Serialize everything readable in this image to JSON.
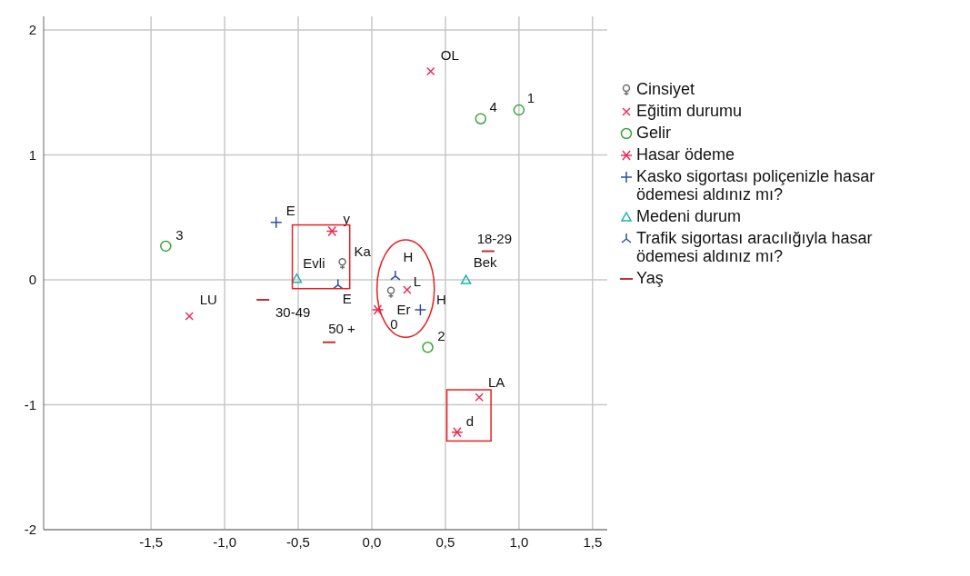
{
  "chart_data": {
    "type": "scatter",
    "xlim": [
      -2.23,
      1.6
    ],
    "ylim": [
      -2,
      2.11
    ],
    "xticks": [
      {
        "value": -1.5,
        "label": "-1,5"
      },
      {
        "value": -1,
        "label": "-1,0"
      },
      {
        "value": -0.5,
        "label": "-0,5"
      },
      {
        "value": 0,
        "label": "0,0"
      },
      {
        "value": 0.5,
        "label": "0,5"
      },
      {
        "value": 1,
        "label": "1,0"
      },
      {
        "value": 1.5,
        "label": "1,5"
      }
    ],
    "yticks": [
      -2,
      -1,
      0,
      1,
      2
    ],
    "grid": true,
    "legend": "right",
    "series": [
      {
        "name": "Cinsiyet",
        "color": "#707070",
        "x": [
          -0.2,
          0.13
        ],
        "values": [
          0.13,
          -0.1
        ]
      },
      {
        "name": "Eğitim durumu",
        "color": "#e8305a",
        "x": [
          0.4,
          0.24,
          -1.24,
          0.73
        ],
        "values": [
          1.67,
          -0.08,
          -0.29,
          -0.94
        ]
      },
      {
        "name": "Gelir",
        "color": "#3aa43a",
        "marker": "circle",
        "x": [
          1.0,
          0.74,
          -1.4,
          0.38
        ],
        "values": [
          1.36,
          1.29,
          0.27,
          -0.54
        ]
      },
      {
        "name": "Hasar ödeme",
        "color": "#e8305a",
        "x": [
          -0.27,
          0.04,
          0.58
        ],
        "values": [
          0.39,
          -0.24,
          -1.22
        ]
      },
      {
        "name": "Kasko sigortası poliçenizle hasar ödemesi aldınız mı?",
        "color": "#2f4f9a",
        "x": [
          -0.65,
          0.33
        ],
        "values": [
          0.46,
          -0.24
        ]
      },
      {
        "name": "Medeni durum",
        "color": "#20b2aa",
        "marker": "triangle",
        "x": [
          -0.51,
          0.64
        ],
        "values": [
          0.01,
          0
        ]
      },
      {
        "name": "Trafik sigortası aracılığıyla hasar ödemesi aldınız mı?",
        "color": "#2f4f9a",
        "x": [
          -0.23,
          0.16
        ],
        "values": [
          -0.04,
          0.03
        ]
      },
      {
        "name": "Yaş",
        "color": "#c0303a",
        "x": [
          0.79,
          -0.74,
          -0.29
        ],
        "values": [
          0.23,
          -0.16,
          -0.5
        ]
      }
    ],
    "annotations": [
      {
        "text": "Ka",
        "x": -0.2,
        "y": 0.13
      },
      {
        "text": "Er",
        "x": 0.13,
        "y": -0.1
      },
      {
        "text": "OL",
        "x": 0.4,
        "y": 1.67
      },
      {
        "text": "L",
        "x": 0.24,
        "y": -0.08
      },
      {
        "text": "LU",
        "x": -1.24,
        "y": -0.29
      },
      {
        "text": "LA",
        "x": 0.73,
        "y": -0.94
      },
      {
        "text": "1",
        "x": 1.0,
        "y": 1.36
      },
      {
        "text": "4",
        "x": 0.74,
        "y": 1.29
      },
      {
        "text": "3",
        "x": -1.4,
        "y": 0.27
      },
      {
        "text": "2",
        "x": 0.38,
        "y": -0.54
      },
      {
        "text": "y",
        "x": -0.27,
        "y": 0.39
      },
      {
        "text": "0",
        "x": 0.04,
        "y": -0.24
      },
      {
        "text": "d",
        "x": 0.58,
        "y": -1.22
      },
      {
        "text": "E",
        "x": -0.65,
        "y": 0.46
      },
      {
        "text": "H",
        "x": 0.33,
        "y": -0.24
      },
      {
        "text": "Evli",
        "x": -0.51,
        "y": 0.01
      },
      {
        "text": "Bek",
        "x": 0.64,
        "y": 0
      },
      {
        "text": "E",
        "x": -0.23,
        "y": -0.04
      },
      {
        "text": "H",
        "x": 0.16,
        "y": 0.03
      },
      {
        "text": "18-29",
        "x": 0.79,
        "y": 0.23
      },
      {
        "text": "30-49",
        "x": -0.74,
        "y": -0.16
      },
      {
        "text": "50 +",
        "x": -0.29,
        "y": -0.5
      }
    ]
  }
}
